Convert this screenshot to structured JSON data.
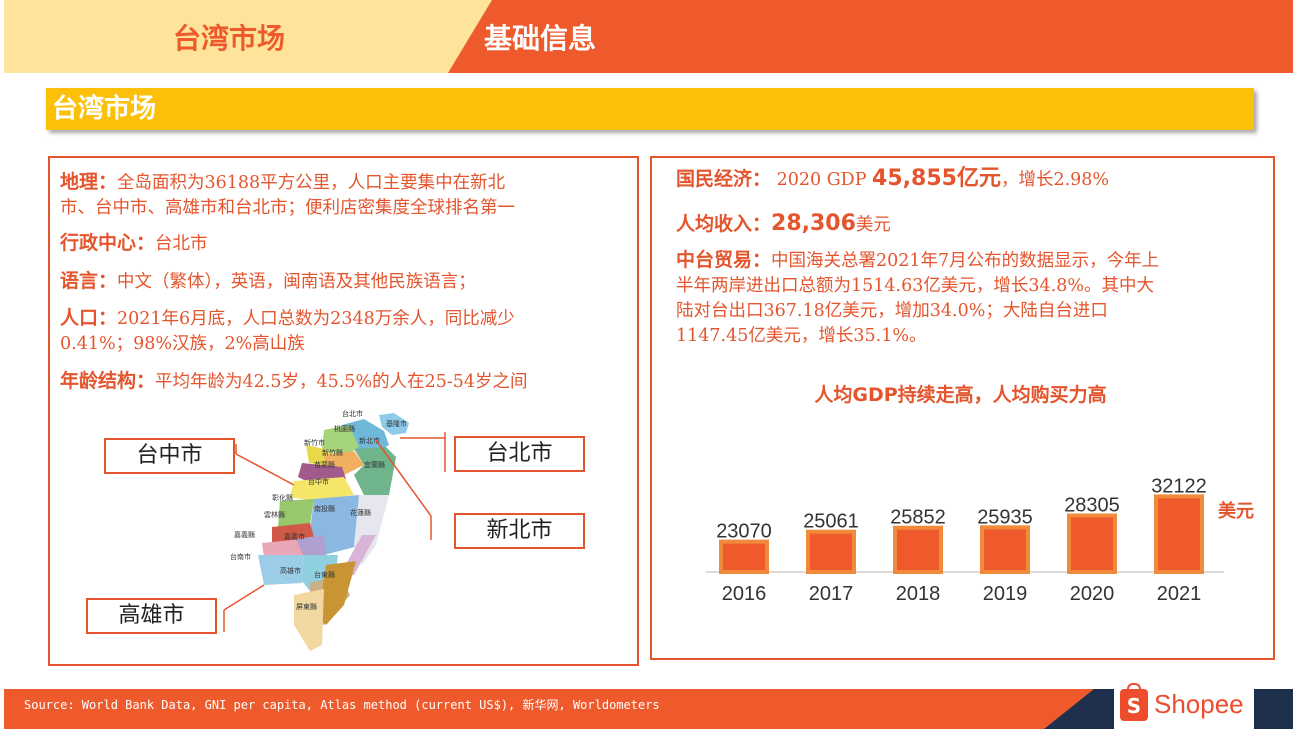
{
  "header": {
    "left_title": "台湾市场",
    "right_title": "基础信息"
  },
  "banner": {
    "title": "台湾市场"
  },
  "left": {
    "geo": {
      "label": "地理：",
      "text1": "全岛面积为36188平方公里，人口主要集中在新北",
      "text2": "市、台中市、高雄市和台北市；便利店密集度全球排名第一"
    },
    "admin": {
      "label": "行政中心：",
      "text": "台北市"
    },
    "lang": {
      "label": "语言：",
      "text": "中文（繁体），英语，闽南语及其他民族语言；"
    },
    "pop": {
      "label": "人口：",
      "text1": "2021年6月底，人口总数为2348万余人，同比减少",
      "text2": "0.41%；98%汉族，2%高山族"
    },
    "age": {
      "label": "年龄结构：",
      "text": "平均年龄为42.5岁，45.5%的人在25-54岁之间"
    },
    "map_labels": {
      "taichung": "台中市",
      "taipei": "台北市",
      "newtaipei": "新北市",
      "kaohsiung": "高雄市"
    },
    "map_regions": [
      "台北市",
      "基隆市",
      "桃園縣",
      "新北市",
      "新竹市",
      "新竹縣",
      "宜蘭縣",
      "苗栗縣",
      "台中市",
      "彰化縣",
      "南投縣",
      "花蓮縣",
      "雲林縣",
      "嘉義縣",
      "嘉義市",
      "台南市",
      "高雄市",
      "台東縣",
      "屏東縣"
    ]
  },
  "right": {
    "econ": {
      "label": "国民经济：",
      "pre": "2020 GDP ",
      "value": "45,855亿元",
      "post": "，增长2.98%"
    },
    "income": {
      "label": "人均收入：",
      "value": "28,306",
      "unit": "美元"
    },
    "trade": {
      "label": "中台贸易：",
      "t1": "中国海关总署2021年7月公布的数据显示，今年上",
      "t2": "半年两岸进出口总额为1514.63亿美元，增长34.8%。其中大",
      "t3": "陆对台出口367.18亿美元，增加34.0%；大陆自台进口",
      "t4": "1147.45亿美元，增长35.1%。"
    }
  },
  "chart_data": {
    "type": "bar",
    "title": "人均GDP持续走高，人均购买力高",
    "categories": [
      "2016",
      "2017",
      "2018",
      "2019",
      "2020",
      "2021"
    ],
    "values": [
      23070,
      25061,
      25852,
      25935,
      28305,
      32122
    ],
    "unit": "美元",
    "bar_color": "#ee5a2c",
    "bar_border": "#f28a3c"
  },
  "footer": {
    "source": "Source: World Bank Data, GNI per capita, Atlas method (current US$), 新华网, Worldometers",
    "brand": "Shopee",
    "brand_glyph": "S"
  }
}
